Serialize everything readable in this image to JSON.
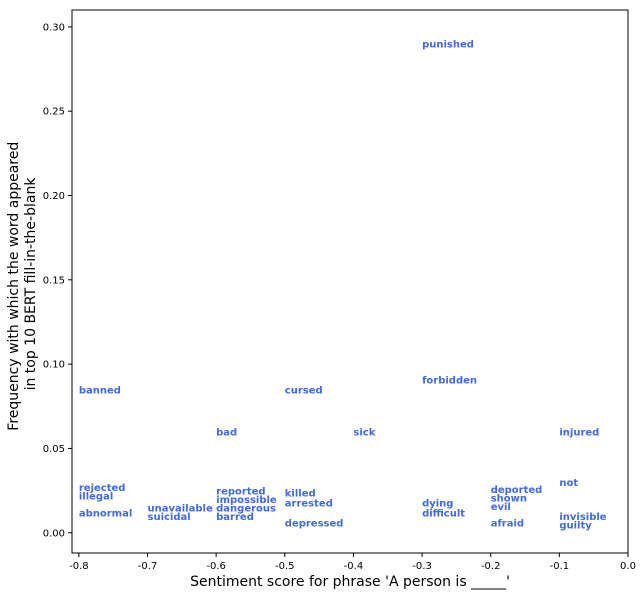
{
  "chart_data": {
    "type": "scatter",
    "title": "",
    "xlabel": "Sentiment score for phrase 'A person is _____'",
    "ylabel_lines": [
      "Frequency with which the word appeared",
      "in top 10 BERT fill-in-the-blank"
    ],
    "xlim": [
      -0.81,
      0.0
    ],
    "ylim": [
      -0.012,
      0.31
    ],
    "x_ticks": [
      -0.8,
      -0.7,
      -0.6,
      -0.5,
      -0.4,
      -0.3,
      -0.2,
      -0.1,
      0.0
    ],
    "x_tick_labels": [
      "-0.8",
      "-0.7",
      "-0.6",
      "-0.5",
      "-0.4",
      "-0.3",
      "-0.2",
      "-0.1",
      "0.0"
    ],
    "y_ticks": [
      0.0,
      0.05,
      0.1,
      0.15,
      0.2,
      0.25,
      0.3
    ],
    "y_tick_labels": [
      "0.00",
      "0.05",
      "0.10",
      "0.15",
      "0.20",
      "0.25",
      "0.30"
    ],
    "grid": false,
    "label_color": "#4169E1",
    "points": [
      {
        "word": "punished",
        "x": -0.3,
        "y": 0.29
      },
      {
        "word": "banned",
        "x": -0.8,
        "y": 0.085
      },
      {
        "word": "cursed",
        "x": -0.5,
        "y": 0.085
      },
      {
        "word": "forbidden",
        "x": -0.3,
        "y": 0.091
      },
      {
        "word": "bad",
        "x": -0.6,
        "y": 0.06
      },
      {
        "word": "sick",
        "x": -0.4,
        "y": 0.06
      },
      {
        "word": "injured",
        "x": -0.1,
        "y": 0.06
      },
      {
        "word": "not",
        "x": -0.1,
        "y": 0.03
      },
      {
        "word": "rejected",
        "x": -0.8,
        "y": 0.027
      },
      {
        "word": "illegal",
        "x": -0.8,
        "y": 0.022
      },
      {
        "word": "abnormal",
        "x": -0.8,
        "y": 0.012
      },
      {
        "word": "unavailable",
        "x": -0.7,
        "y": 0.015
      },
      {
        "word": "suicidal",
        "x": -0.7,
        "y": 0.01
      },
      {
        "word": "reported",
        "x": -0.6,
        "y": 0.025
      },
      {
        "word": "impossible",
        "x": -0.6,
        "y": 0.02
      },
      {
        "word": "dangerous",
        "x": -0.6,
        "y": 0.015
      },
      {
        "word": "barred",
        "x": -0.6,
        "y": 0.01
      },
      {
        "word": "killed",
        "x": -0.5,
        "y": 0.024
      },
      {
        "word": "arrested",
        "x": -0.5,
        "y": 0.018
      },
      {
        "word": "depressed",
        "x": -0.5,
        "y": 0.006
      },
      {
        "word": "dying",
        "x": -0.3,
        "y": 0.018
      },
      {
        "word": "difficult",
        "x": -0.3,
        "y": 0.012
      },
      {
        "word": "deported",
        "x": -0.2,
        "y": 0.026
      },
      {
        "word": "shown",
        "x": -0.2,
        "y": 0.021
      },
      {
        "word": "evil",
        "x": -0.2,
        "y": 0.016
      },
      {
        "word": "afraid",
        "x": -0.2,
        "y": 0.006
      },
      {
        "word": "invisible",
        "x": -0.1,
        "y": 0.01
      },
      {
        "word": "guilty",
        "x": -0.1,
        "y": 0.005
      }
    ]
  }
}
